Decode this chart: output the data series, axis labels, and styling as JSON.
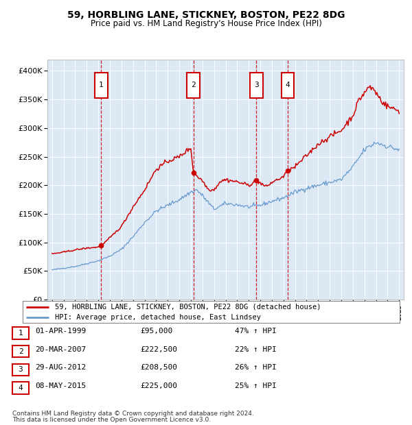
{
  "title": "59, HORBLING LANE, STICKNEY, BOSTON, PE22 8DG",
  "subtitle": "Price paid vs. HM Land Registry's House Price Index (HPI)",
  "legend_line1": "59, HORBLING LANE, STICKNEY, BOSTON, PE22 8DG (detached house)",
  "legend_line2": "HPI: Average price, detached house, East Lindsey",
  "footer1": "Contains HM Land Registry data © Crown copyright and database right 2024.",
  "footer2": "This data is licensed under the Open Government Licence v3.0.",
  "transactions": [
    {
      "num": 1,
      "date": "01-APR-1999",
      "price": 95000,
      "pct": "47%",
      "dir": "↑"
    },
    {
      "num": 2,
      "date": "20-MAR-2007",
      "price": 222500,
      "pct": "22%",
      "dir": "↑"
    },
    {
      "num": 3,
      "date": "29-AUG-2012",
      "price": 208500,
      "pct": "26%",
      "dir": "↑"
    },
    {
      "num": 4,
      "date": "08-MAY-2015",
      "price": 225000,
      "pct": "25%",
      "dir": "↑"
    }
  ],
  "transaction_dates_decimal": [
    1999.25,
    2007.22,
    2012.66,
    2015.36
  ],
  "transaction_prices": [
    95000,
    222500,
    208500,
    225000
  ],
  "property_color": "#cc0000",
  "hpi_color": "#6699cc",
  "background_color": "#dce9f5",
  "ylim": [
    0,
    420000
  ],
  "yticks": [
    0,
    50000,
    100000,
    150000,
    200000,
    250000,
    300000,
    350000,
    400000
  ],
  "hpi_anchors_years": [
    1995.0,
    1996.0,
    1997.0,
    1998.0,
    1999.0,
    2000.0,
    2001.0,
    2002.0,
    2003.0,
    2004.0,
    2005.0,
    2006.0,
    2007.0,
    2007.5,
    2008.0,
    2009.0,
    2010.0,
    2011.0,
    2012.0,
    2013.0,
    2014.0,
    2015.0,
    2016.0,
    2017.0,
    2018.0,
    2019.0,
    2020.0,
    2021.0,
    2022.0,
    2023.0,
    2024.0,
    2025.0
  ],
  "hpi_anchors_vals": [
    52000,
    55000,
    58000,
    63000,
    68000,
    76000,
    88000,
    110000,
    135000,
    155000,
    165000,
    175000,
    188000,
    192000,
    182000,
    158000,
    168000,
    166000,
    162000,
    165000,
    172000,
    178000,
    188000,
    195000,
    200000,
    205000,
    210000,
    232000,
    262000,
    275000,
    268000,
    262000
  ],
  "prop_anchors_years": [
    1995.0,
    1996.0,
    1997.0,
    1998.0,
    1999.0,
    1999.3,
    2000.0,
    2001.0,
    2002.0,
    2003.0,
    2004.0,
    2005.0,
    2006.0,
    2006.75,
    2007.0,
    2007.22,
    2007.6,
    2008.0,
    2008.5,
    2009.0,
    2009.5,
    2010.0,
    2011.0,
    2012.0,
    2012.66,
    2013.0,
    2013.5,
    2014.0,
    2015.0,
    2015.36,
    2016.0,
    2017.0,
    2018.0,
    2019.0,
    2020.0,
    2021.0,
    2021.5,
    2022.0,
    2022.4,
    2022.8,
    2023.2,
    2023.6,
    2024.0,
    2024.5,
    2025.0
  ],
  "prop_anchors_vals": [
    80000,
    83000,
    87000,
    90000,
    92000,
    95000,
    108000,
    128000,
    162000,
    192000,
    228000,
    242000,
    250000,
    262000,
    265000,
    222500,
    215000,
    208000,
    193000,
    192000,
    206000,
    210000,
    206000,
    200000,
    208500,
    204000,
    197000,
    205000,
    215000,
    225000,
    232000,
    252000,
    272000,
    285000,
    296000,
    322000,
    348000,
    362000,
    372000,
    368000,
    356000,
    345000,
    338000,
    334000,
    330000
  ]
}
